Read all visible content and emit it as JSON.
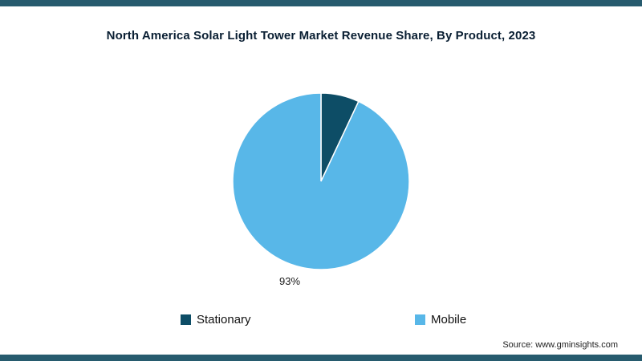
{
  "page": {
    "source": "Source: www.gminsights.com",
    "accent_bar_color": "#275b6e",
    "background_color": "#ffffff"
  },
  "chart_data": {
    "type": "pie",
    "title": "North America Solar Light Tower Market Revenue Share, By Product, 2023",
    "slices": [
      {
        "label": "Stationary",
        "value": 7,
        "color": "#0d4d66"
      },
      {
        "label": "Mobile",
        "value": 93,
        "color": "#58b7e8"
      }
    ],
    "percent_label": "93%",
    "start_angle_deg": -90,
    "direction": "clockwise",
    "legend_position": "bottom",
    "legend_entries": [
      "Stationary",
      "Mobile"
    ]
  }
}
